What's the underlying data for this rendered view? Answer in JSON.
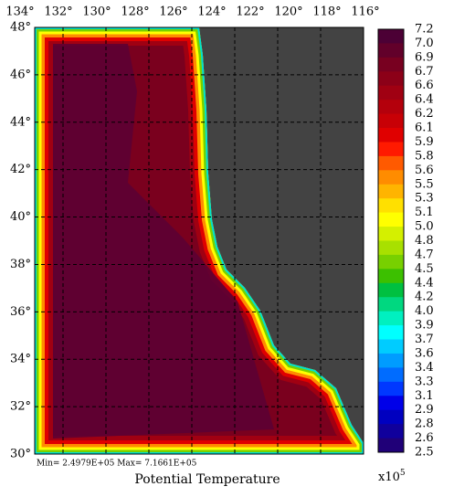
{
  "map": {
    "lon_labels": [
      "134°",
      "132°",
      "130°",
      "128°",
      "126°",
      "124°",
      "122°",
      "120°",
      "118°",
      "116°"
    ],
    "lat_labels": [
      "48°",
      "46°",
      "44°",
      "42°",
      "40°",
      "38°",
      "36°",
      "34°",
      "32°",
      "30°"
    ],
    "land_color": "#434343",
    "stats": "Min= 2.4979E+05   Max= 7.1661E+05",
    "title": "Potential Temperature"
  },
  "colorbar": {
    "labels": [
      "7.2",
      "7.0",
      "6.9",
      "6.7",
      "6.6",
      "6.4",
      "6.2",
      "6.1",
      "5.9",
      "5.8",
      "5.6",
      "5.5",
      "5.3",
      "5.1",
      "5.0",
      "4.8",
      "4.7",
      "4.5",
      "4.4",
      "4.2",
      "4.0",
      "3.9",
      "3.7",
      "3.6",
      "3.4",
      "3.3",
      "3.1",
      "2.9",
      "2.8",
      "2.6",
      "2.5"
    ],
    "colors": [
      "#4c0035",
      "#62002a",
      "#780020",
      "#8c0018",
      "#a00012",
      "#b4000c",
      "#c80006",
      "#e00000",
      "#ff1a00",
      "#ff5a00",
      "#ff8c00",
      "#ffb400",
      "#ffe000",
      "#ffff00",
      "#d4f000",
      "#a8e000",
      "#78d000",
      "#3cc000",
      "#00c040",
      "#00d880",
      "#00f0c0",
      "#00ffff",
      "#00ccff",
      "#009cff",
      "#006cff",
      "#0038ff",
      "#0000e8",
      "#0000c0",
      "#10009c",
      "#200078"
    ],
    "multiplier": "x10",
    "exponent": "5"
  }
}
